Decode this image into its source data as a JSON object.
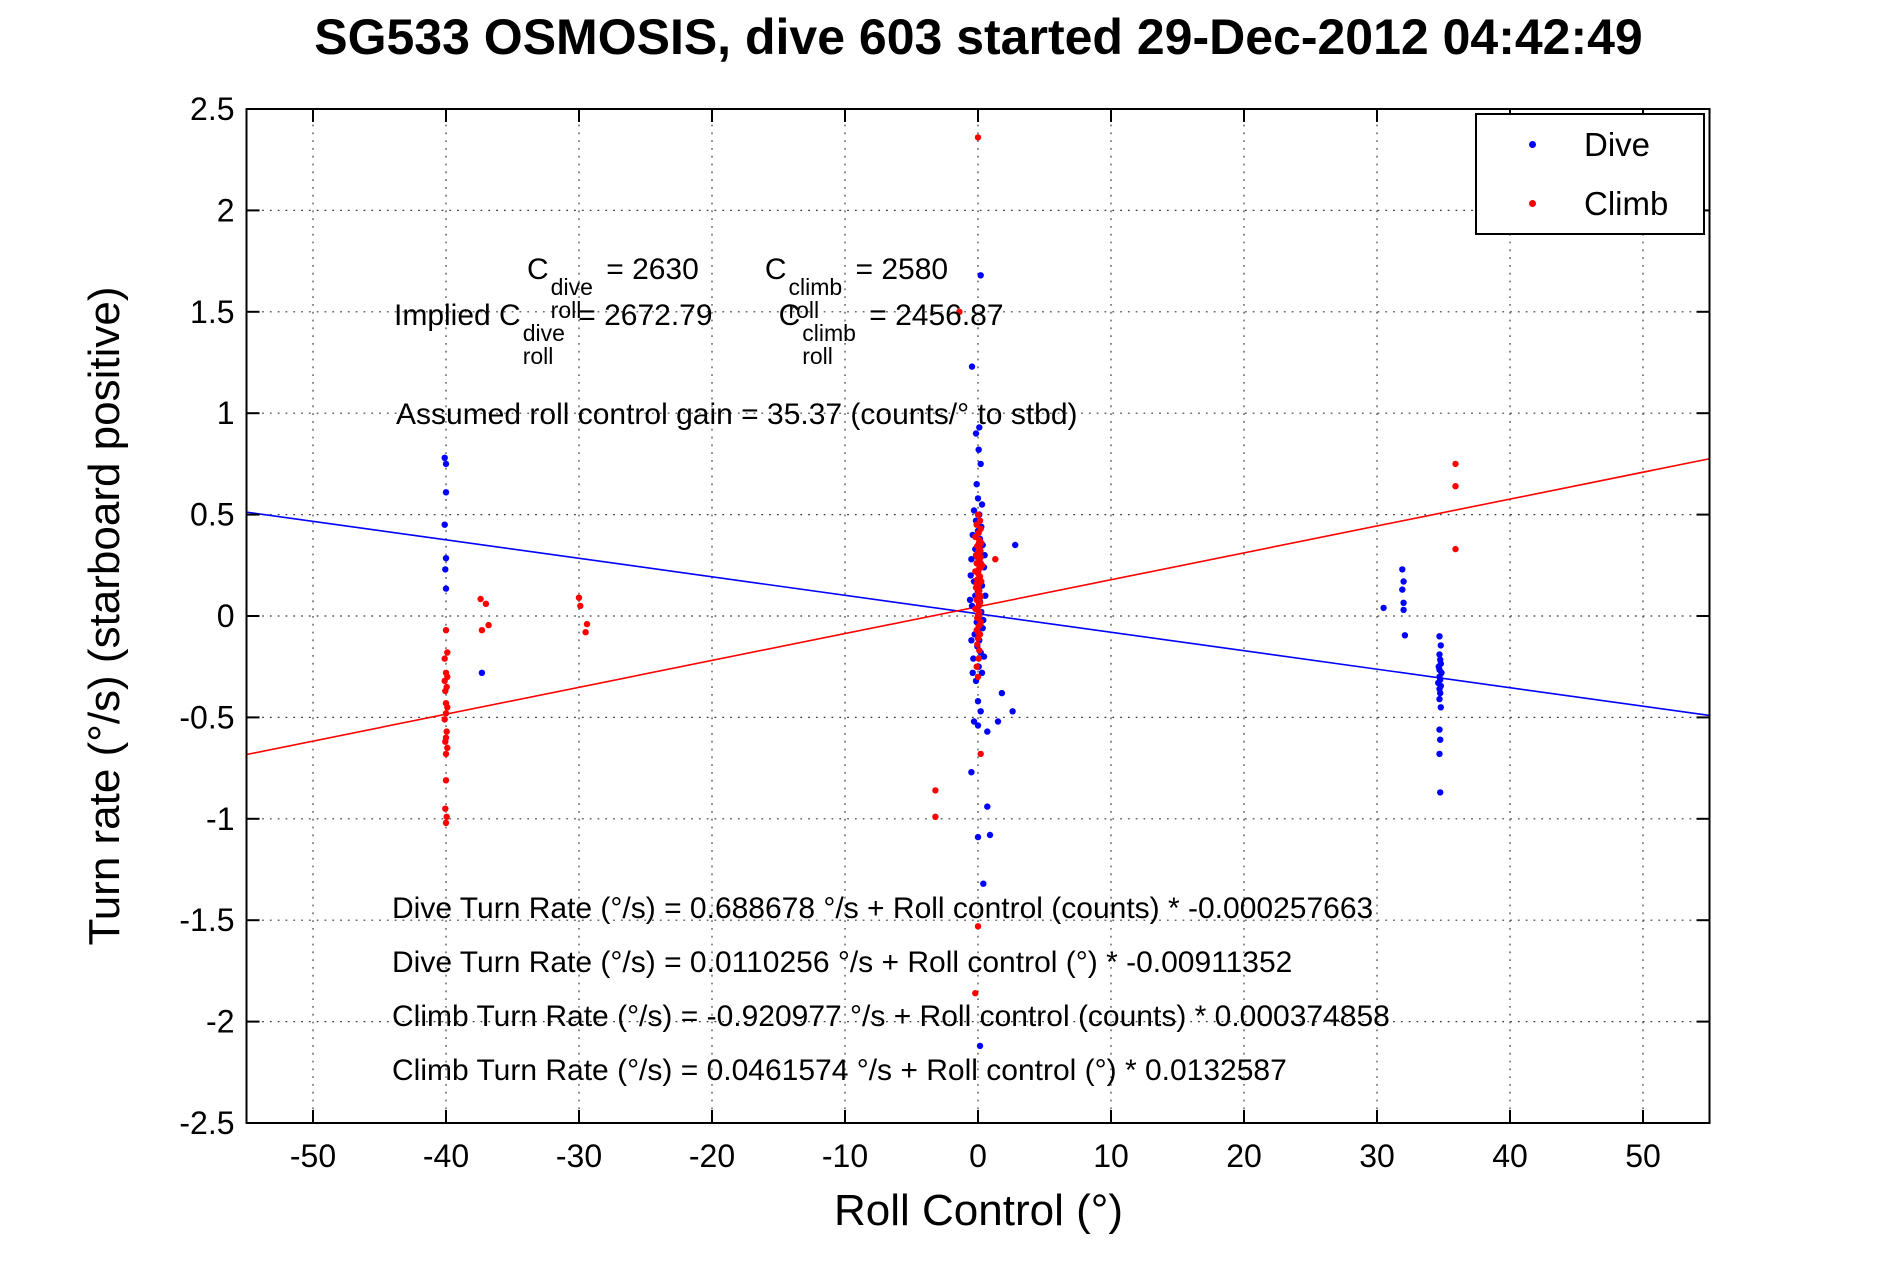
{
  "title": "SG533 OSMOSIS, dive 603 started 29-Dec-2012 04:42:49",
  "axes": {
    "xlabel": "Roll Control (°)",
    "ylabel": "Turn rate (°/s) (starboard positive)"
  },
  "legend": {
    "items": [
      {
        "label": "Dive",
        "color": "#0000ff"
      },
      {
        "label": "Climb",
        "color": "#ff0000"
      }
    ]
  },
  "annotations": {
    "line1": {
      "segments": [
        {
          "t": "text",
          "v": "C"
        },
        {
          "t": "supsub",
          "sup": "dive",
          "sub": "roll"
        },
        {
          "t": "text",
          "v": " = 2630"
        },
        {
          "t": "gap"
        },
        {
          "t": "text",
          "v": "C"
        },
        {
          "t": "supsub",
          "sup": "climb",
          "sub": "roll"
        },
        {
          "t": "text",
          "v": " = 2580"
        }
      ]
    },
    "line2": {
      "segments": [
        {
          "t": "text",
          "v": "Implied C"
        },
        {
          "t": "supsub",
          "sup": "dive",
          "sub": "roll"
        },
        {
          "t": "text",
          "v": " = 2672.79"
        },
        {
          "t": "gap"
        },
        {
          "t": "text",
          "v": "C"
        },
        {
          "t": "supsub",
          "sup": "climb",
          "sub": "roll"
        },
        {
          "t": "text",
          "v": " = 2456.87"
        }
      ]
    },
    "line3": {
      "text": "Assumed roll control gain = 35.37 (counts/° to stbd)"
    }
  },
  "equations": [
    "Dive Turn Rate (°/s) = 0.688678 °/s + Roll control (counts) * -0.000257663",
    "Dive Turn Rate (°/s) = 0.0110256 °/s + Roll control (°) * -0.00911352",
    "Climb Turn Rate (°/s) = -0.920977 °/s + Roll control (counts) * 0.000374858",
    "Climb Turn Rate (°/s) = 0.0461574 °/s + Roll control (°) * 0.0132587"
  ],
  "chart_data": {
    "type": "scatter",
    "title": "SG533 OSMOSIS, dive 603 started 29-Dec-2012 04:42:49",
    "xlabel": "Roll Control (°)",
    "ylabel": "Turn rate (°/s) (starboard positive)",
    "xlim": [
      -55,
      55
    ],
    "ylim": [
      -2.5,
      2.5
    ],
    "xticks": [
      -50,
      -40,
      -30,
      -20,
      -10,
      0,
      10,
      20,
      30,
      40,
      50
    ],
    "xtick_labels": [
      "-50",
      "-40",
      "-30",
      "-20",
      "-10",
      "0",
      "10",
      "20",
      "30",
      "40",
      "50"
    ],
    "yticks": [
      -2.5,
      -2,
      -1.5,
      -1,
      -0.5,
      0,
      0.5,
      1,
      1.5,
      2,
      2.5
    ],
    "ytick_labels": [
      "-2.5",
      "-2",
      "-1.5",
      "-1",
      "-0.5",
      "0",
      "0.5",
      "1",
      "1.5",
      "2",
      "2.5"
    ],
    "grid": true,
    "legend_position": "top-right",
    "series": [
      {
        "name": "Dive",
        "color": "#0000ff",
        "marker": "point",
        "points": [
          [
            -40.1,
            0.78
          ],
          [
            -40,
            0.75
          ],
          [
            -40,
            0.61
          ],
          [
            -40.1,
            0.45
          ],
          [
            -40,
            0.285
          ],
          [
            -40.05,
            0.23
          ],
          [
            -40,
            0.135
          ],
          [
            -37.3,
            -0.28
          ],
          [
            0.2,
            1.68
          ],
          [
            -0.45,
            1.23
          ],
          [
            0.1,
            0.93
          ],
          [
            -0.15,
            0.9
          ],
          [
            0.05,
            0.82
          ],
          [
            0.2,
            0.75
          ],
          [
            -0.1,
            0.65
          ],
          [
            0,
            0.58
          ],
          [
            0.3,
            0.55
          ],
          [
            -0.3,
            0.52
          ],
          [
            0.1,
            0.5
          ],
          [
            -0.15,
            0.47
          ],
          [
            0.25,
            0.44
          ],
          [
            0,
            0.42
          ],
          [
            -0.4,
            0.4
          ],
          [
            0.15,
            0.38
          ],
          [
            0.35,
            0.35
          ],
          [
            -0.2,
            0.33
          ],
          [
            0.05,
            0.31
          ],
          [
            -0.5,
            0.28
          ],
          [
            0.2,
            0.26
          ],
          [
            0.45,
            0.24
          ],
          [
            -0.1,
            0.22
          ],
          [
            0.1,
            0.19
          ],
          [
            -0.3,
            0.17
          ],
          [
            0.3,
            0.15
          ],
          [
            0,
            0.12
          ],
          [
            -0.2,
            0.1
          ],
          [
            0.15,
            0.07
          ],
          [
            -0.45,
            0.05
          ],
          [
            0.25,
            0.02
          ],
          [
            0.05,
            0
          ],
          [
            -0.1,
            -0.03
          ],
          [
            0.35,
            -0.06
          ],
          [
            -0.25,
            -0.09
          ],
          [
            0.1,
            -0.12
          ],
          [
            -0.05,
            -0.15
          ],
          [
            0.2,
            -0.18
          ],
          [
            -0.35,
            -0.21
          ],
          [
            0.05,
            -0.25
          ],
          [
            0.3,
            -0.28
          ],
          [
            -0.15,
            -0.32
          ],
          [
            0.5,
            0.3
          ],
          [
            -0.55,
            0.2
          ],
          [
            0.55,
            0.1
          ],
          [
            -0.6,
            0.08
          ],
          [
            0.4,
            -0.02
          ],
          [
            -0.5,
            -0.12
          ],
          [
            0.45,
            -0.2
          ],
          [
            -0.4,
            -0.28
          ],
          [
            2.8,
            0.35
          ],
          [
            1.8,
            -0.38
          ],
          [
            2.6,
            -0.47
          ],
          [
            1.5,
            -0.52
          ],
          [
            0,
            -0.42
          ],
          [
            0.2,
            -0.47
          ],
          [
            -0.3,
            -0.52
          ],
          [
            0,
            -0.54
          ],
          [
            0.7,
            -0.57
          ],
          [
            -0.5,
            -0.77
          ],
          [
            0.7,
            -0.94
          ],
          [
            0,
            -1.09
          ],
          [
            0.9,
            -1.08
          ],
          [
            0.4,
            -1.32
          ],
          [
            0.15,
            -2.12
          ],
          [
            30.5,
            0.04
          ],
          [
            31.9,
            0.23
          ],
          [
            32,
            0.17
          ],
          [
            31.9,
            0.13
          ],
          [
            32,
            0.065
          ],
          [
            32,
            0.03
          ],
          [
            32.1,
            -0.095
          ],
          [
            34.7,
            -0.1
          ],
          [
            34.8,
            -0.145
          ],
          [
            34.7,
            -0.19
          ],
          [
            34.75,
            -0.215
          ],
          [
            34.8,
            -0.235
          ],
          [
            34.65,
            -0.25
          ],
          [
            34.7,
            -0.265
          ],
          [
            34.85,
            -0.28
          ],
          [
            34.7,
            -0.3
          ],
          [
            34.75,
            -0.315
          ],
          [
            34.6,
            -0.33
          ],
          [
            34.8,
            -0.345
          ],
          [
            34.7,
            -0.36
          ],
          [
            34.75,
            -0.38
          ],
          [
            34.7,
            -0.41
          ],
          [
            34.8,
            -0.45
          ],
          [
            34.7,
            -0.56
          ],
          [
            34.75,
            -0.61
          ],
          [
            34.7,
            -0.68
          ],
          [
            34.75,
            -0.87
          ]
        ]
      },
      {
        "name": "Climb",
        "color": "#ff0000",
        "marker": "point",
        "points": [
          [
            -40,
            -0.07
          ],
          [
            -39.9,
            -0.18
          ],
          [
            -40.1,
            -0.21
          ],
          [
            -40,
            -0.28
          ],
          [
            -39.9,
            -0.3
          ],
          [
            -40.1,
            -0.32
          ],
          [
            -39.95,
            -0.35
          ],
          [
            -40.05,
            -0.37
          ],
          [
            -40,
            -0.43
          ],
          [
            -39.9,
            -0.45
          ],
          [
            -40,
            -0.48
          ],
          [
            -40.1,
            -0.51
          ],
          [
            -39.95,
            -0.57
          ],
          [
            -40,
            -0.6
          ],
          [
            -40.05,
            -0.62
          ],
          [
            -39.9,
            -0.65
          ],
          [
            -40,
            -0.68
          ],
          [
            -40,
            -0.81
          ],
          [
            -40.05,
            -0.95
          ],
          [
            -39.95,
            -0.99
          ],
          [
            -40,
            -1.02
          ],
          [
            -37.4,
            0.084
          ],
          [
            -37,
            0.06
          ],
          [
            -36.8,
            -0.045
          ],
          [
            -37.3,
            -0.07
          ],
          [
            -30,
            0.09
          ],
          [
            -29.9,
            0.05
          ],
          [
            -29.4,
            -0.04
          ],
          [
            -29.5,
            -0.08
          ],
          [
            0,
            2.36
          ],
          [
            -1.4,
            1.5
          ],
          [
            0,
            0.5
          ],
          [
            0.15,
            0.47
          ],
          [
            -0.1,
            0.45
          ],
          [
            0.2,
            0.43
          ],
          [
            0.05,
            0.41
          ],
          [
            -0.2,
            0.39
          ],
          [
            0.1,
            0.375
          ],
          [
            0.25,
            0.36
          ],
          [
            -0.05,
            0.345
          ],
          [
            0.15,
            0.33
          ],
          [
            0,
            0.315
          ],
          [
            -0.15,
            0.3
          ],
          [
            0.2,
            0.29
          ],
          [
            0.05,
            0.275
          ],
          [
            -0.1,
            0.26
          ],
          [
            0.3,
            0.25
          ],
          [
            0.1,
            0.235
          ],
          [
            -0.2,
            0.22
          ],
          [
            0,
            0.21
          ],
          [
            0.15,
            0.195
          ],
          [
            -0.05,
            0.18
          ],
          [
            0.25,
            0.17
          ],
          [
            0.05,
            0.155
          ],
          [
            -0.15,
            0.14
          ],
          [
            0.1,
            0.125
          ],
          [
            0,
            0.11
          ],
          [
            0.2,
            0.095
          ],
          [
            -0.1,
            0.08
          ],
          [
            0.15,
            0.065
          ],
          [
            0.05,
            0.05
          ],
          [
            -0.2,
            0.035
          ],
          [
            0.1,
            0.02
          ],
          [
            0,
            0.005
          ],
          [
            -0.05,
            -0.01
          ],
          [
            0.2,
            -0.03
          ],
          [
            0.05,
            -0.05
          ],
          [
            -0.1,
            -0.07
          ],
          [
            0.15,
            -0.09
          ],
          [
            0,
            -0.11
          ],
          [
            -0.05,
            -0.14
          ],
          [
            0.1,
            -0.17
          ],
          [
            0.05,
            -0.21
          ],
          [
            -0.1,
            -0.25
          ],
          [
            0,
            -0.3
          ],
          [
            0.08,
            0.36
          ],
          [
            0.18,
            0.32
          ],
          [
            -0.04,
            0.29
          ],
          [
            0.12,
            0.27
          ],
          [
            0.22,
            0.24
          ],
          [
            0.02,
            0.22
          ],
          [
            0.14,
            0.18
          ],
          [
            -0.08,
            0.16
          ],
          [
            0.06,
            0.13
          ],
          [
            0.16,
            0.1
          ],
          [
            0.04,
            0.07
          ],
          [
            -0.06,
            0.04
          ],
          [
            0.1,
            0
          ],
          [
            0.18,
            -0.04
          ],
          [
            0,
            -0.08
          ],
          [
            1.3,
            0.28
          ],
          [
            0.2,
            -0.68
          ],
          [
            -3.2,
            -0.86
          ],
          [
            -3.2,
            -0.99
          ],
          [
            0,
            -1.53
          ],
          [
            -0.2,
            -1.86
          ],
          [
            35.9,
            0.75
          ],
          [
            35.9,
            0.64
          ],
          [
            35.9,
            0.33
          ]
        ]
      }
    ],
    "fit_lines": [
      {
        "name": "dive-fit",
        "color": "#0000ff",
        "intercept": 0.0110256,
        "slope": -0.00911352
      },
      {
        "name": "climb-fit",
        "color": "#ff0000",
        "intercept": 0.0461574,
        "slope": 0.0132587
      }
    ]
  }
}
